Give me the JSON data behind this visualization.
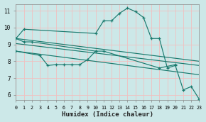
{
  "xlabel": "Humidex (Indice chaleur)",
  "bg_color": "#cce8e8",
  "grid_color": "#f0c0c0",
  "line_color": "#1a7a6e",
  "xlim": [
    0,
    23
  ],
  "ylim": [
    5.7,
    11.4
  ],
  "xticks": [
    0,
    1,
    2,
    3,
    4,
    5,
    6,
    7,
    8,
    9,
    10,
    11,
    12,
    13,
    14,
    15,
    16,
    17,
    18,
    19,
    20,
    21,
    22,
    23
  ],
  "yticks": [
    6,
    7,
    8,
    9,
    10,
    11
  ],
  "series_bell": {
    "x": [
      0,
      1,
      10,
      11,
      12,
      13,
      14,
      15,
      16,
      17,
      18,
      19,
      20,
      21,
      22,
      23
    ],
    "y": [
      9.35,
      9.9,
      9.65,
      10.4,
      10.4,
      10.85,
      11.15,
      10.95,
      10.6,
      9.35,
      9.35,
      7.6,
      7.75,
      6.3,
      6.5,
      5.75
    ]
  },
  "series_short": {
    "x": [
      0,
      1,
      2,
      10
    ],
    "y": [
      9.35,
      9.15,
      9.15,
      8.6
    ]
  },
  "series_lower": {
    "x": [
      0,
      3,
      4,
      5,
      6,
      7,
      8,
      9,
      10,
      11,
      18,
      20
    ],
    "y": [
      8.6,
      8.35,
      7.75,
      7.8,
      7.8,
      7.8,
      7.8,
      8.1,
      8.6,
      8.6,
      7.6,
      7.8
    ]
  },
  "trend1": {
    "x": [
      0,
      23
    ],
    "y": [
      9.35,
      8.0
    ]
  },
  "trend2": {
    "x": [
      0,
      23
    ],
    "y": [
      9.05,
      7.75
    ]
  },
  "trend3": {
    "x": [
      0,
      23
    ],
    "y": [
      8.6,
      7.2
    ]
  }
}
